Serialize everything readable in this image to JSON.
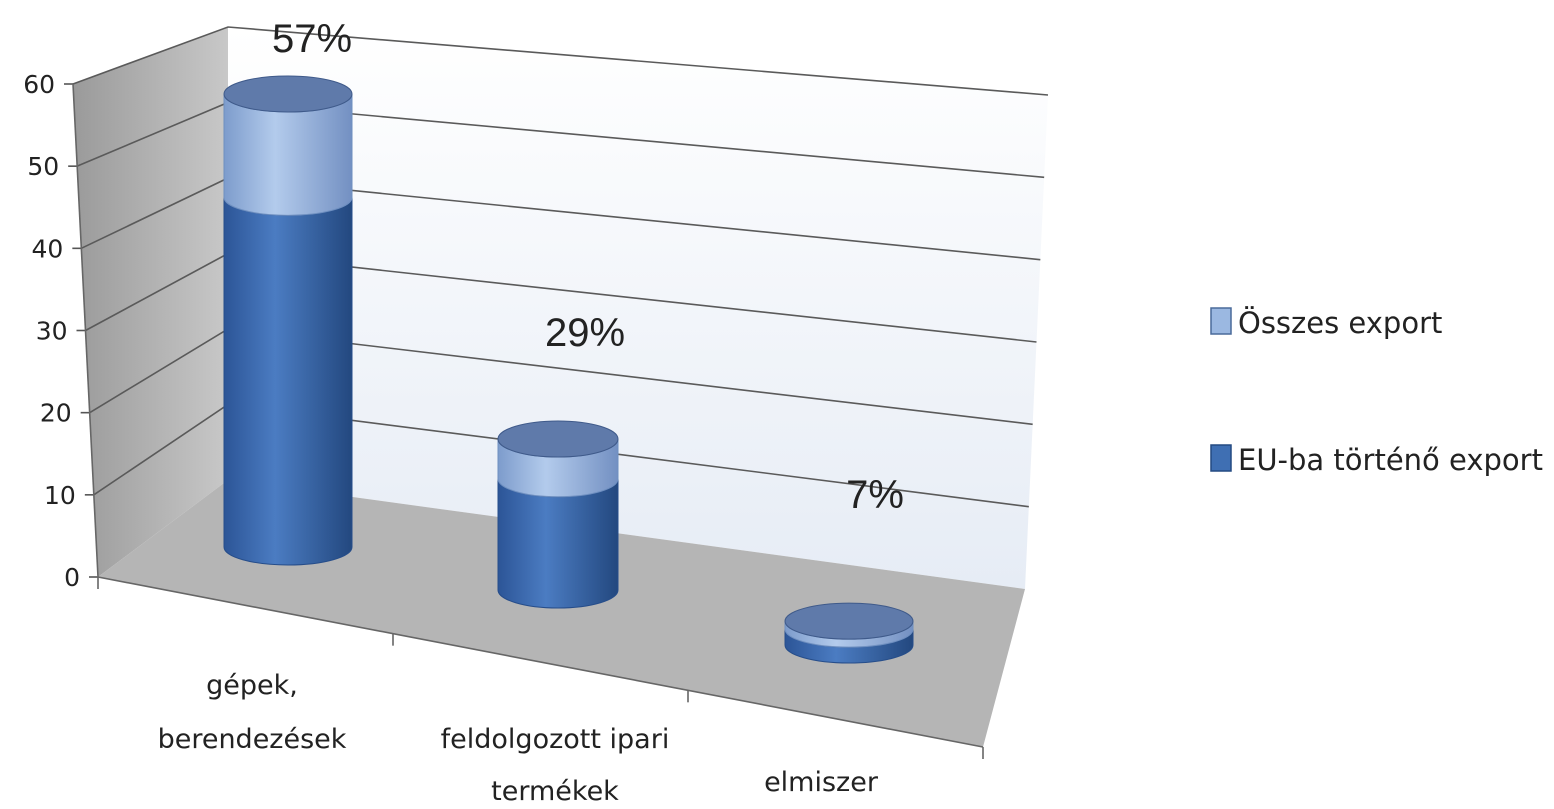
{
  "chart_data": {
    "type": "bar",
    "style": "3d-cylinder-stacked",
    "categories": [
      [
        "gépek,",
        "berendezések"
      ],
      [
        "feldolgozott ipari",
        "termékek"
      ],
      [
        "elmiszer"
      ]
    ],
    "series": [
      {
        "name": "EU-ba történő export",
        "values": [
          44,
          14,
          2
        ],
        "color": "#3f6fb3"
      },
      {
        "name": "Összes export",
        "values": [
          13,
          5,
          1
        ],
        "color": "#9bb8e1"
      }
    ],
    "data_labels": [
      "57%",
      "29%",
      "7%"
    ],
    "y_ticks": [
      0,
      10,
      20,
      30,
      40,
      50,
      60
    ],
    "ylim": [
      0,
      60
    ],
    "grid": true,
    "legend_position": "right",
    "legend_entries": [
      "Összes export",
      "EU-ba történő export"
    ]
  }
}
